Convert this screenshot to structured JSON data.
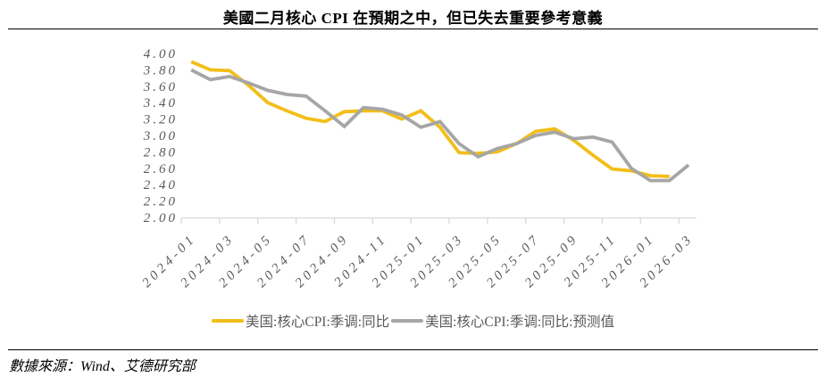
{
  "title": "美國二月核心 CPI 在預期之中，但已失去重要參考意義",
  "footer": {
    "text": "數據來源：Wind、艾德研究部"
  },
  "legend": {
    "items": [
      {
        "label": "美国:核心CPI:季调:同比",
        "color": "#F2BE19"
      },
      {
        "label": "美国:核心CPI:季调:同比:预测值",
        "color": "#A6A6A6"
      }
    ]
  },
  "chart_data": {
    "type": "line",
    "categories": [
      "2024-01",
      "2024-02",
      "2024-03",
      "2024-04",
      "2024-05",
      "2024-06",
      "2024-07",
      "2024-08",
      "2024-09",
      "2024-10",
      "2024-11",
      "2024-12",
      "2025-01",
      "2025-02",
      "2025-03",
      "2025-04",
      "2025-05",
      "2025-06",
      "2025-07",
      "2025-08",
      "2025-09",
      "2025-10",
      "2025-11",
      "2025-12",
      "2026-01",
      "2026-02",
      "2026-03"
    ],
    "x_tick_labels": [
      "2024-01",
      "2024-03",
      "2024-05",
      "2024-07",
      "2024-09",
      "2024-11",
      "2025-01",
      "2025-03",
      "2025-05",
      "2025-07",
      "2025-09",
      "2025-11",
      "2026-01",
      "2026-03"
    ],
    "series": [
      {
        "name": "美国:核心CPI:季调:同比",
        "color": "#F2BE19",
        "values": [
          3.9,
          3.8,
          3.79,
          3.61,
          3.4,
          3.3,
          3.21,
          3.17,
          3.29,
          3.3,
          3.3,
          3.2,
          3.3,
          3.1,
          2.79,
          2.78,
          2.8,
          2.9,
          3.05,
          3.08,
          2.94,
          2.76,
          2.59,
          2.57,
          2.51,
          2.5,
          null
        ]
      },
      {
        "name": "美国:核心CPI:季调:同比:预测值",
        "color": "#A6A6A6",
        "values": [
          3.8,
          3.68,
          3.72,
          3.64,
          3.55,
          3.5,
          3.48,
          3.3,
          3.11,
          3.34,
          3.32,
          3.25,
          3.1,
          3.17,
          2.9,
          2.74,
          2.84,
          2.9,
          3.0,
          3.04,
          2.96,
          2.98,
          2.92,
          2.6,
          2.45,
          2.45,
          2.64
        ]
      }
    ],
    "ylim": [
      2.0,
      4.0
    ],
    "y_tick_step": 0.2,
    "y_tick_format": "0.00",
    "grid": false,
    "legend_position": "bottom",
    "axis_color": "#D9D9D9",
    "label_color": "#595959"
  }
}
